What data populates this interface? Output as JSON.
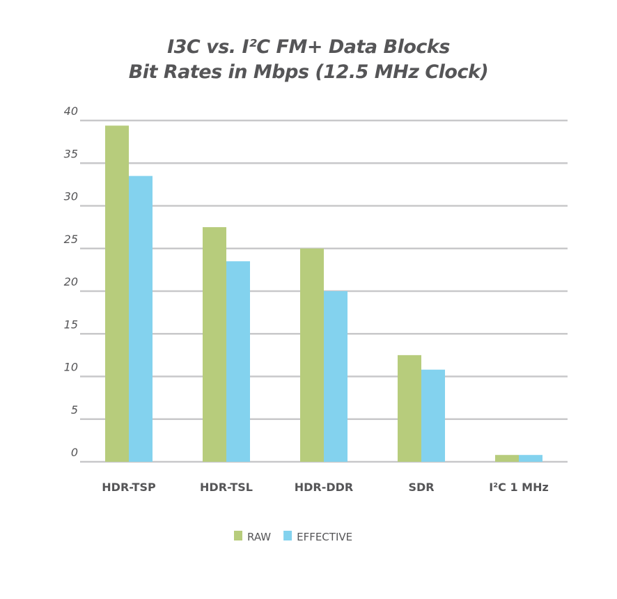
{
  "chart_data": {
    "type": "bar",
    "title": "I3C vs. I²C FM+ Data Blocks",
    "subtitle": "Bit Rates in Mbps (12.5 MHz Clock)",
    "xlabel": "",
    "ylabel": "",
    "categories": [
      "HDR-TSP",
      "HDR-TSL",
      "HDR-DDR",
      "SDR",
      "I²C 1 MHz"
    ],
    "series": [
      {
        "name": "RAW",
        "color": "#b7cc7c",
        "values": [
          39.4,
          27.5,
          25,
          12.5,
          0.8
        ]
      },
      {
        "name": "EFFECTIVE",
        "color": "#83d2ee",
        "values": [
          33.5,
          23.5,
          20,
          10.8,
          0.8
        ]
      }
    ],
    "ylim": [
      0,
      40
    ],
    "yticks": [
      0,
      5,
      10,
      15,
      20,
      25,
      30,
      35,
      40
    ],
    "grid": true,
    "legend": "bottom"
  }
}
